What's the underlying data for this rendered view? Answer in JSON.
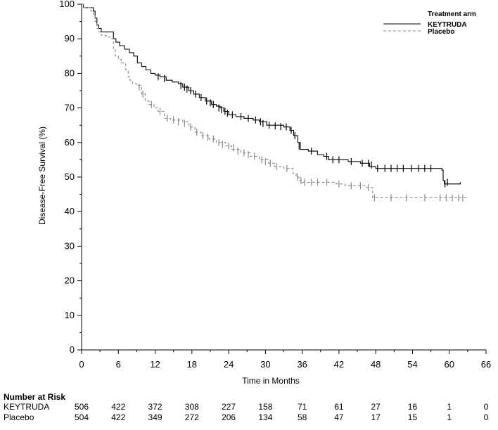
{
  "chart_data": {
    "type": "line",
    "xlabel": "Time in Months",
    "ylabel": "Disease-Free Survival (%)",
    "xlim": [
      0,
      66
    ],
    "ylim": [
      0,
      100
    ],
    "xticks": [
      0,
      6,
      12,
      18,
      24,
      30,
      36,
      42,
      48,
      54,
      60,
      66
    ],
    "yticks": [
      0,
      10,
      20,
      30,
      40,
      50,
      60,
      70,
      80,
      90,
      100
    ],
    "legend": {
      "title": "Treatment arm",
      "placement": "top-right",
      "entries": [
        {
          "label": "KEYTRUDA",
          "style": "solid",
          "color": "#000000"
        },
        {
          "label": "Placebo",
          "style": "dashed",
          "color": "#888888"
        }
      ]
    },
    "series": [
      {
        "name": "KEYTRUDA",
        "color": "#000000",
        "style": "solid",
        "steps": [
          [
            0,
            100
          ],
          [
            0.3,
            99
          ],
          [
            1.5,
            99
          ],
          [
            1.9,
            98
          ],
          [
            2.2,
            96
          ],
          [
            2.5,
            94
          ],
          [
            2.8,
            93
          ],
          [
            3.2,
            92
          ],
          [
            4.5,
            92
          ],
          [
            5.2,
            90
          ],
          [
            5.6,
            89
          ],
          [
            6.2,
            88
          ],
          [
            7.0,
            87
          ],
          [
            7.8,
            86
          ],
          [
            8.5,
            85
          ],
          [
            9.1,
            83
          ],
          [
            9.8,
            82
          ],
          [
            10.5,
            81
          ],
          [
            11.3,
            80
          ],
          [
            12.0,
            79.5
          ],
          [
            12.8,
            79
          ],
          [
            13.8,
            78
          ],
          [
            14.8,
            77.5
          ],
          [
            15.8,
            77
          ],
          [
            16.5,
            76
          ],
          [
            17.5,
            75
          ],
          [
            18.3,
            74
          ],
          [
            19.2,
            73
          ],
          [
            20.2,
            72
          ],
          [
            21.2,
            71
          ],
          [
            22.0,
            70.5
          ],
          [
            22.6,
            70
          ],
          [
            23.2,
            69
          ],
          [
            24.0,
            68
          ],
          [
            25.2,
            67.5
          ],
          [
            26.5,
            67
          ],
          [
            28.0,
            66.5
          ],
          [
            29.0,
            66
          ],
          [
            30.2,
            65
          ],
          [
            31.2,
            65
          ],
          [
            33.0,
            64.5
          ],
          [
            34.0,
            63.5
          ],
          [
            34.6,
            62
          ],
          [
            35.3,
            60
          ],
          [
            35.7,
            58
          ],
          [
            37.0,
            57.5
          ],
          [
            38.5,
            56.5
          ],
          [
            39.5,
            56
          ],
          [
            40.3,
            55
          ],
          [
            43.5,
            54.5
          ],
          [
            45.5,
            54
          ],
          [
            47.0,
            53
          ],
          [
            48.0,
            52.5
          ],
          [
            55.0,
            52.5
          ],
          [
            58.8,
            52
          ],
          [
            59.0,
            49
          ],
          [
            59.2,
            48
          ],
          [
            61.8,
            48.5
          ]
        ],
        "censor_marks": [
          [
            12.5,
            79
          ],
          [
            13.5,
            78.5
          ],
          [
            16.2,
            76.5
          ],
          [
            16.8,
            76
          ],
          [
            17.2,
            75.5
          ],
          [
            17.8,
            75
          ],
          [
            18.6,
            74
          ],
          [
            19.5,
            73
          ],
          [
            20.4,
            72
          ],
          [
            21.0,
            71.5
          ],
          [
            21.5,
            71
          ],
          [
            22.4,
            70
          ],
          [
            22.8,
            69.5
          ],
          [
            23.4,
            69
          ],
          [
            23.8,
            68.5
          ],
          [
            24.6,
            68
          ],
          [
            26.0,
            67.5
          ],
          [
            27.2,
            67
          ],
          [
            28.4,
            66.5
          ],
          [
            29.2,
            66
          ],
          [
            29.6,
            65.5
          ],
          [
            30.6,
            65
          ],
          [
            31.6,
            64.8
          ],
          [
            32.5,
            64.6
          ],
          [
            33.4,
            64.5
          ],
          [
            34.2,
            63.5
          ],
          [
            34.8,
            62
          ],
          [
            35.5,
            59
          ],
          [
            37.5,
            57.5
          ],
          [
            40.0,
            56
          ],
          [
            41.0,
            55
          ],
          [
            42.0,
            55
          ],
          [
            44.0,
            54.5
          ],
          [
            45.8,
            54
          ],
          [
            46.8,
            54
          ],
          [
            47.3,
            53.5
          ],
          [
            48.3,
            52.5
          ],
          [
            49.5,
            52.5
          ],
          [
            50.5,
            52.5
          ],
          [
            51.5,
            52.5
          ],
          [
            52.5,
            52.5
          ],
          [
            53.8,
            52.5
          ],
          [
            55.0,
            52.5
          ],
          [
            56.0,
            52.5
          ],
          [
            57.0,
            52.5
          ],
          [
            59.3,
            48
          ],
          [
            59.7,
            48.5
          ]
        ]
      },
      {
        "name": "Placebo",
        "color": "#888888",
        "style": "dashed",
        "steps": [
          [
            0,
            100
          ],
          [
            0.3,
            99
          ],
          [
            1.5,
            98
          ],
          [
            1.9,
            97
          ],
          [
            2.2,
            95
          ],
          [
            2.5,
            93
          ],
          [
            2.8,
            92
          ],
          [
            3.2,
            91
          ],
          [
            4.0,
            90.5
          ],
          [
            4.8,
            90
          ],
          [
            5.2,
            87
          ],
          [
            5.5,
            85
          ],
          [
            6.0,
            84
          ],
          [
            6.5,
            83
          ],
          [
            7.2,
            81
          ],
          [
            7.6,
            79
          ],
          [
            7.9,
            78
          ],
          [
            8.3,
            77
          ],
          [
            9.0,
            76.5
          ],
          [
            9.8,
            74
          ],
          [
            10.4,
            72
          ],
          [
            11.0,
            71
          ],
          [
            11.8,
            70
          ],
          [
            12.5,
            69
          ],
          [
            13.5,
            67
          ],
          [
            14.5,
            66.5
          ],
          [
            16.5,
            66
          ],
          [
            17.5,
            64.5
          ],
          [
            18.5,
            63
          ],
          [
            19.5,
            62
          ],
          [
            20.8,
            61
          ],
          [
            22.0,
            60
          ],
          [
            23.5,
            59
          ],
          [
            24.5,
            58
          ],
          [
            26.0,
            57
          ],
          [
            27.5,
            56
          ],
          [
            29.0,
            55
          ],
          [
            30.5,
            54
          ],
          [
            31.5,
            53
          ],
          [
            33.0,
            52.5
          ],
          [
            34.5,
            51
          ],
          [
            35.0,
            50
          ],
          [
            35.5,
            49
          ],
          [
            36.0,
            48.5
          ],
          [
            39.5,
            48.5
          ],
          [
            41.5,
            48
          ],
          [
            43.0,
            47.5
          ],
          [
            46.5,
            47
          ],
          [
            47.5,
            44
          ],
          [
            53.0,
            44
          ],
          [
            58.0,
            44
          ],
          [
            63.0,
            44
          ]
        ],
        "censor_marks": [
          [
            9.4,
            76
          ],
          [
            10.0,
            74
          ],
          [
            11.4,
            71
          ],
          [
            12.8,
            69
          ],
          [
            14.0,
            67
          ],
          [
            15.0,
            66.5
          ],
          [
            15.8,
            66
          ],
          [
            16.8,
            65.5
          ],
          [
            17.8,
            64.5
          ],
          [
            18.8,
            63
          ],
          [
            19.8,
            62
          ],
          [
            20.6,
            61.5
          ],
          [
            21.5,
            61
          ],
          [
            22.4,
            60
          ],
          [
            23.0,
            59.5
          ],
          [
            24.0,
            59
          ],
          [
            24.8,
            58.5
          ],
          [
            25.5,
            57.5
          ],
          [
            26.5,
            57
          ],
          [
            27.2,
            56.5
          ],
          [
            28.2,
            56
          ],
          [
            29.4,
            55
          ],
          [
            30.0,
            54.5
          ],
          [
            30.8,
            54
          ],
          [
            31.8,
            53
          ],
          [
            33.5,
            52.5
          ],
          [
            35.2,
            50
          ],
          [
            35.8,
            49
          ],
          [
            36.4,
            48.5
          ],
          [
            37.5,
            48.5
          ],
          [
            38.5,
            48.5
          ],
          [
            40.0,
            48.5
          ],
          [
            42.0,
            48
          ],
          [
            44.0,
            47.5
          ],
          [
            45.5,
            47.5
          ],
          [
            46.8,
            47
          ],
          [
            47.8,
            44
          ],
          [
            50.5,
            44
          ],
          [
            53.0,
            44
          ],
          [
            56.0,
            44
          ],
          [
            58.5,
            44
          ],
          [
            59.5,
            44
          ],
          [
            60.5,
            44
          ],
          [
            61.5,
            44
          ],
          [
            62.2,
            44
          ]
        ]
      }
    ],
    "risk_table": {
      "title": "Number at Risk",
      "times": [
        0,
        6,
        12,
        18,
        24,
        30,
        36,
        42,
        48,
        54,
        60,
        66
      ],
      "rows": [
        {
          "label": "KEYTRUDA",
          "values": [
            506,
            422,
            372,
            308,
            227,
            158,
            71,
            61,
            27,
            16,
            1,
            0
          ]
        },
        {
          "label": "Placebo",
          "values": [
            504,
            422,
            349,
            272,
            206,
            134,
            58,
            47,
            17,
            15,
            1,
            0
          ]
        }
      ]
    }
  }
}
